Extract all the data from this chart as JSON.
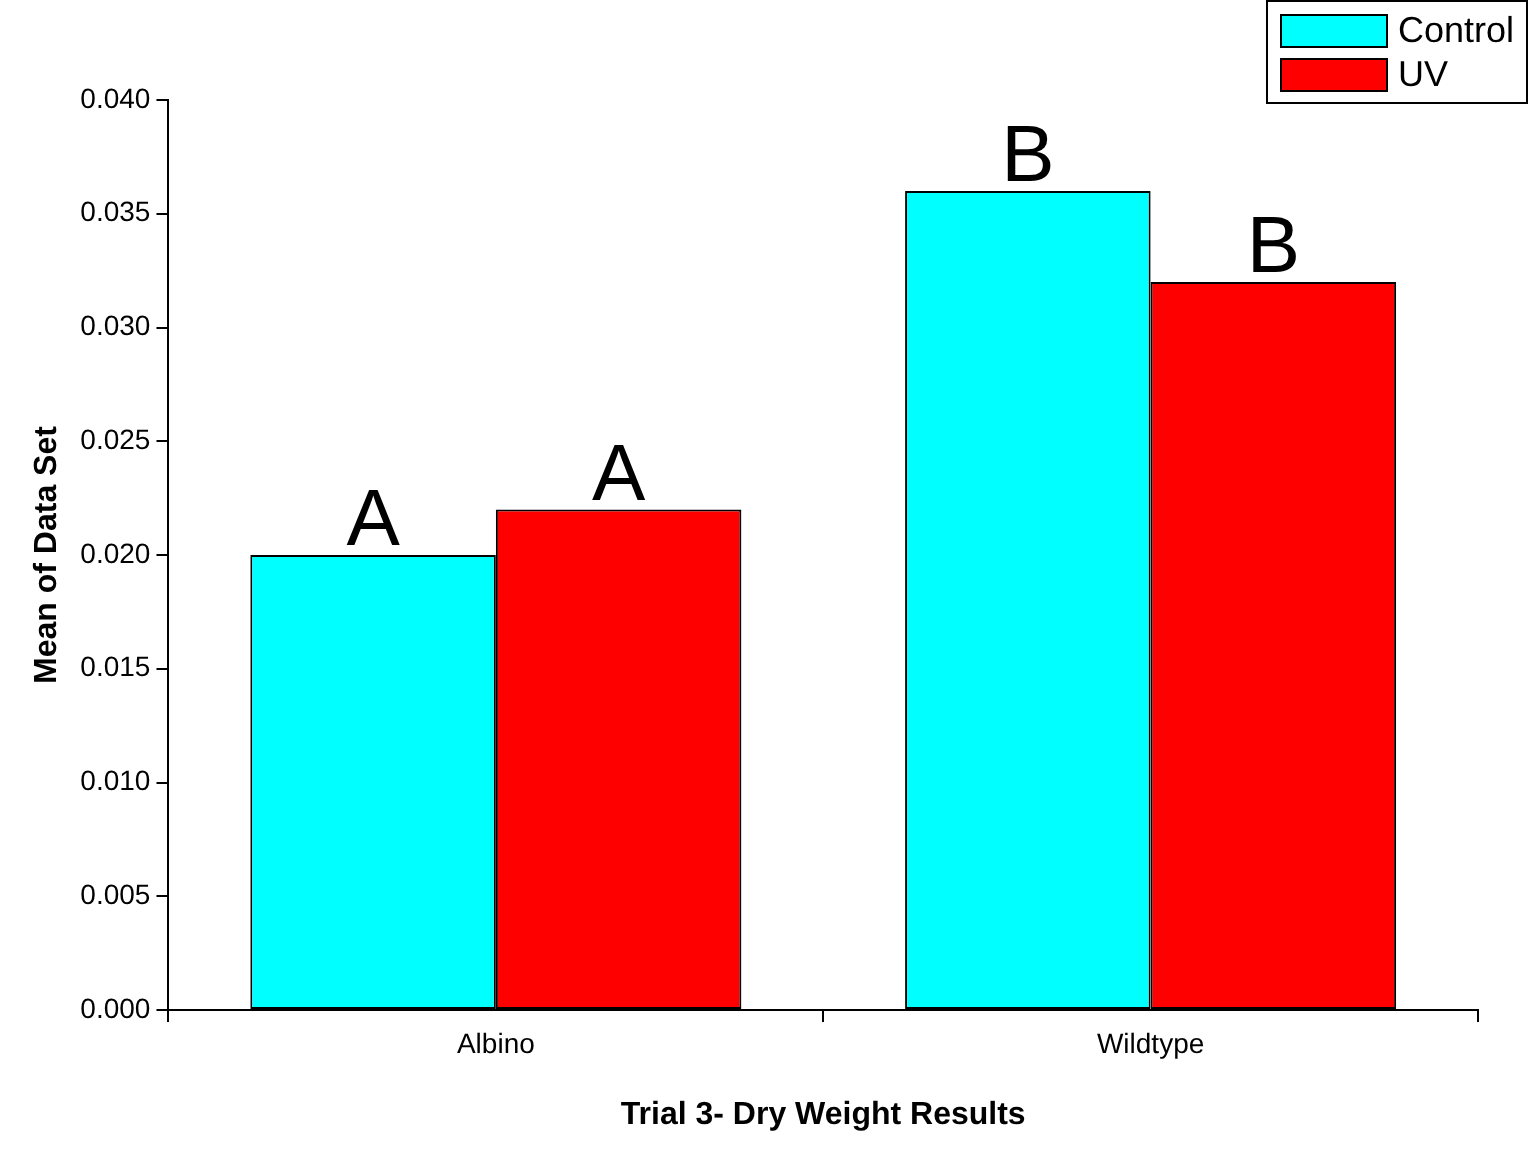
{
  "chart_data": {
    "type": "bar",
    "xlabel": "Trial 3- Dry Weight Results",
    "ylabel": "Mean of Data Set",
    "categories": [
      "Albino",
      "Wildtype"
    ],
    "series": [
      {
        "name": "Control",
        "color": "#00ffff",
        "values": [
          0.02,
          0.036
        ],
        "value_labels": [
          "A",
          "B"
        ]
      },
      {
        "name": "UV",
        "color": "#ff0000",
        "values": [
          0.022,
          0.032
        ],
        "value_labels": [
          "A",
          "B"
        ]
      }
    ],
    "ylim": [
      0,
      0.04
    ],
    "yticks": [
      {
        "value": 0,
        "label": "0.000"
      },
      {
        "value": 0.005,
        "label": "0.005"
      },
      {
        "value": 0.01,
        "label": "0.010"
      },
      {
        "value": 0.015,
        "label": "0.015"
      },
      {
        "value": 0.02,
        "label": "0.020"
      },
      {
        "value": 0.025,
        "label": "0.025"
      },
      {
        "value": 0.03,
        "label": "0.030"
      },
      {
        "value": 0.035,
        "label": "0.035"
      },
      {
        "value": 0.04,
        "label": "0.040"
      }
    ],
    "grid": false,
    "legend": "top right"
  }
}
